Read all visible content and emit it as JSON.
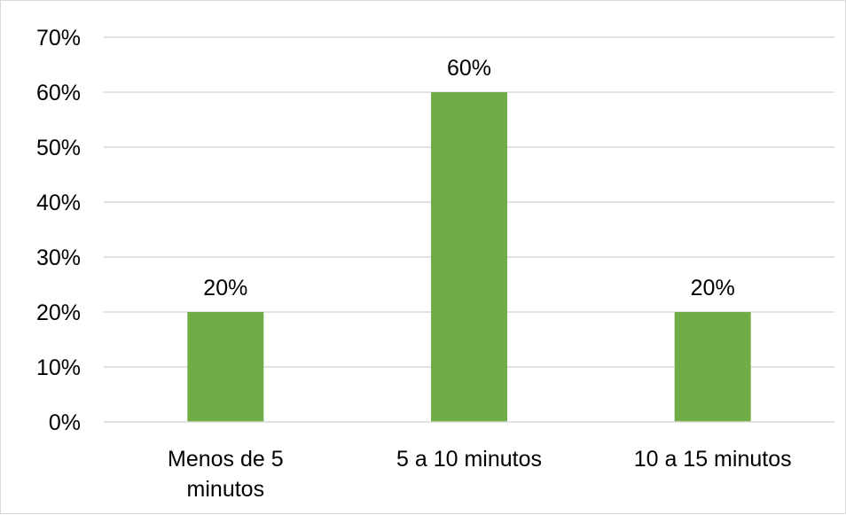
{
  "chart_data": {
    "type": "bar",
    "title": "",
    "xlabel": "",
    "ylabel": "",
    "categories": [
      [
        "Menos de 5",
        "minutos"
      ],
      [
        "5 a 10 minutos"
      ],
      [
        "10 a 15 minutos"
      ]
    ],
    "values": [
      20,
      60,
      20
    ],
    "data_labels": [
      "20%",
      "60%",
      "20%"
    ],
    "y_ticks": [
      0,
      10,
      20,
      30,
      40,
      50,
      60,
      70
    ],
    "y_tick_labels": [
      "0%",
      "10%",
      "20%",
      "30%",
      "40%",
      "50%",
      "60%",
      "70%"
    ],
    "ylim": [
      0,
      70
    ],
    "grid": true,
    "legend": "none",
    "colors": {
      "bar": "#70ad47",
      "grid": "#d9d9d9",
      "axis": "#d9d9d9"
    }
  }
}
